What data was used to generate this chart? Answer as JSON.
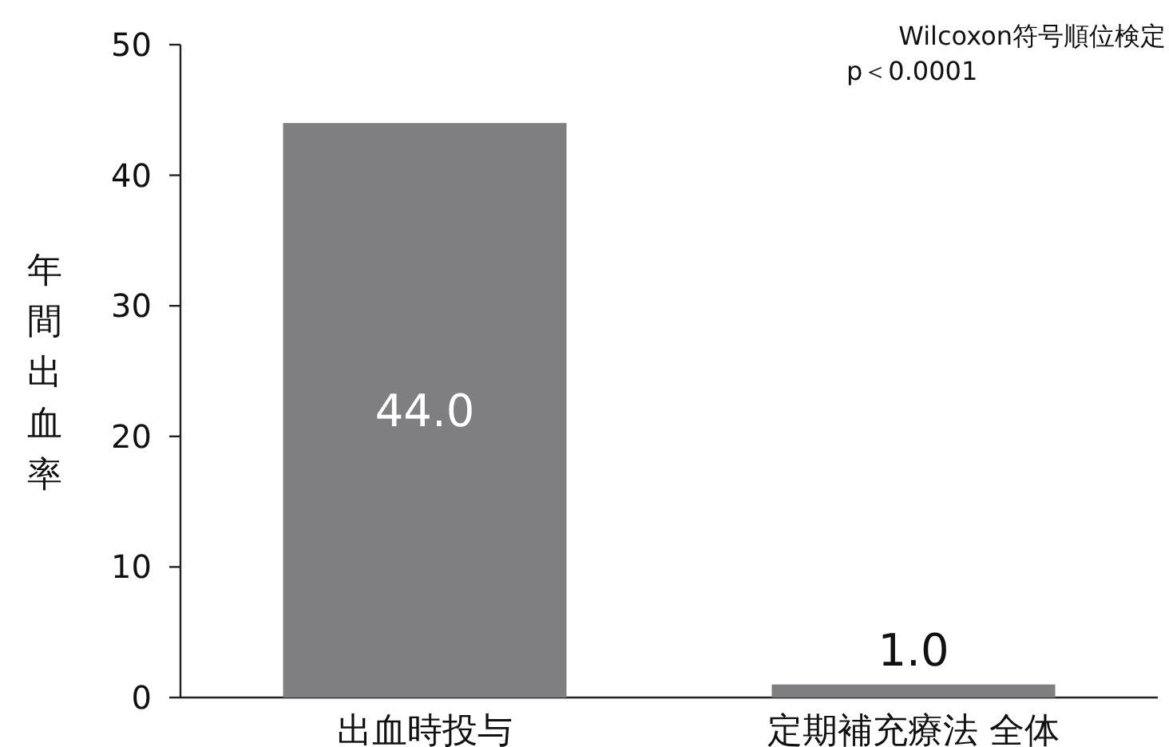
{
  "chart_data": {
    "type": "bar",
    "categories": [
      "出血時投与",
      "定期補充療法 全体"
    ],
    "values": [
      44.0,
      1.0
    ],
    "value_labels": [
      "44.0",
      "1.0"
    ],
    "color": "#7f7f82",
    "ylabel": "年間出血率",
    "ylim": [
      0,
      50
    ],
    "yticks": [
      0,
      10,
      20,
      30,
      40,
      50
    ],
    "annotations": [
      "Wilcoxon符号順位検定",
      "p＜0.0001"
    ]
  }
}
